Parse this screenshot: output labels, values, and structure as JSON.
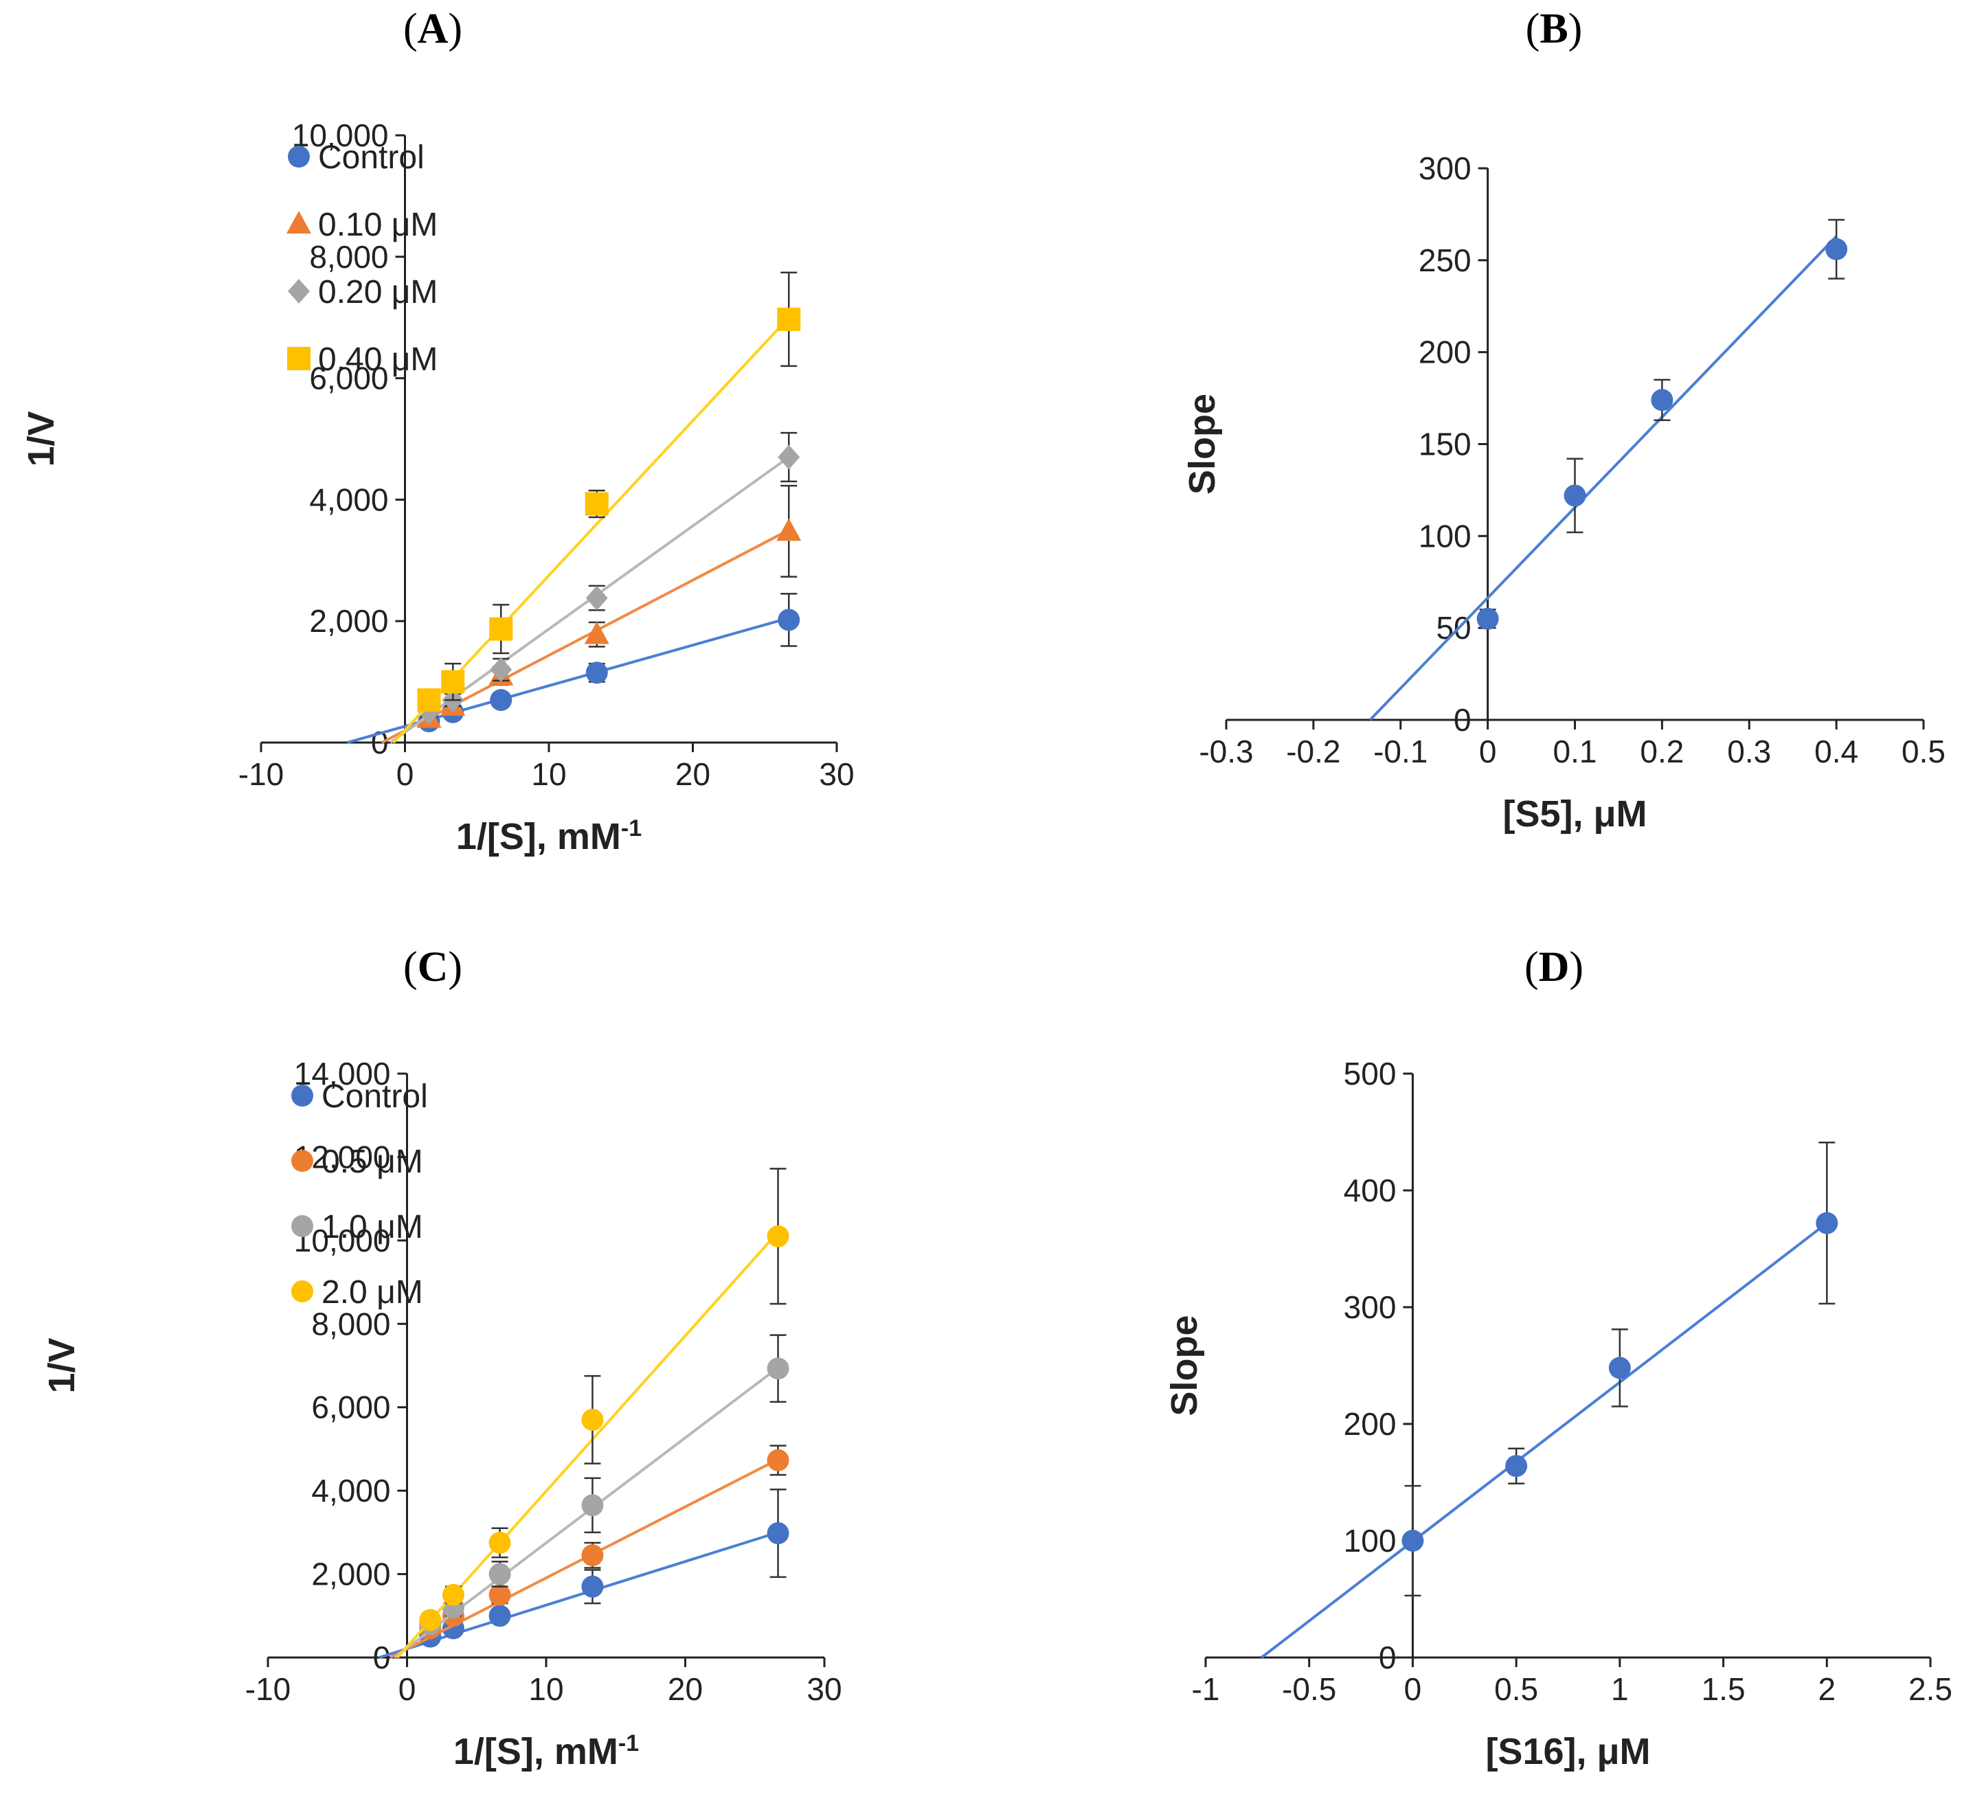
{
  "colors": {
    "blue": "#4472c4",
    "orange": "#ed7d31",
    "gray": "#a5a5a5",
    "yellow": "#ffc000",
    "fitblue": "#4a7fd4",
    "fitorange": "#f08a45",
    "fitgray": "#b8b8b8",
    "fityellow": "#ffd21f"
  },
  "chart_data": [
    {
      "id": "A",
      "panel_label": "A",
      "type": "scatter",
      "xlabel": "1/[S], mM",
      "xlabel_sup": "-1",
      "ylabel": "1/V",
      "xlim": [
        -10,
        30
      ],
      "ylim": [
        0,
        10000
      ],
      "xticks": [
        -10,
        0,
        10,
        20,
        30
      ],
      "yticks": [
        0,
        2000,
        4000,
        6000,
        8000,
        10000
      ],
      "xtick_labels": [
        "-10",
        "0",
        "10",
        "20",
        "30"
      ],
      "ytick_labels": [
        "0",
        "2,000",
        "4,000",
        "6,000",
        "8,000",
        "10,000"
      ],
      "legend_position": "top-left",
      "series": [
        {
          "name": "Control",
          "marker": "circle",
          "color": "blue",
          "x": [
            1.67,
            3.33,
            6.67,
            13.33,
            26.67
          ],
          "y": [
            350,
            500,
            700,
            1150,
            2020
          ],
          "err": [
            60,
            80,
            100,
            150,
            430
          ],
          "fit": {
            "x": [
              -4,
              26.67
            ],
            "y": [
              0,
              2050
            ]
          }
        },
        {
          "name": "0.10 μM",
          "marker": "triangle",
          "color": "orange",
          "x": [
            1.67,
            3.33,
            6.67,
            13.33,
            26.67
          ],
          "y": [
            400,
            600,
            1100,
            1780,
            3480
          ],
          "err": [
            60,
            90,
            150,
            200,
            750
          ],
          "fit": {
            "x": [
              -1.6,
              26.67
            ],
            "y": [
              0,
              3500
            ]
          }
        },
        {
          "name": "0.20 μM",
          "marker": "diamond",
          "color": "gray",
          "x": [
            1.67,
            3.33,
            6.67,
            13.33,
            26.67
          ],
          "y": [
            500,
            700,
            1200,
            2380,
            4700
          ],
          "err": [
            70,
            100,
            180,
            200,
            400
          ],
          "fit": {
            "x": [
              -1,
              26.67
            ],
            "y": [
              0,
              4700
            ]
          }
        },
        {
          "name": "0.40 μM",
          "marker": "square",
          "color": "yellow",
          "x": [
            1.67,
            3.33,
            6.67,
            13.33,
            26.67
          ],
          "y": [
            700,
            1000,
            1870,
            3930,
            6970
          ],
          "err": [
            100,
            300,
            400,
            220,
            770
          ],
          "fit": {
            "x": [
              -0.8,
              26.67
            ],
            "y": [
              0,
              7000
            ]
          }
        }
      ]
    },
    {
      "id": "B",
      "panel_label": "B",
      "type": "scatter",
      "xlabel": "[S5], μM",
      "ylabel": "Slope",
      "xlim": [
        -0.3,
        0.5
      ],
      "ylim": [
        0,
        300
      ],
      "xticks": [
        -0.3,
        -0.2,
        -0.1,
        0,
        0.1,
        0.2,
        0.3,
        0.4,
        0.5
      ],
      "yticks": [
        0,
        50,
        100,
        150,
        200,
        250,
        300
      ],
      "xtick_labels": [
        "-0.3",
        "-0.2",
        "-0.1",
        "0",
        "0.1",
        "0.2",
        "0.3",
        "0.4",
        "0.5"
      ],
      "ytick_labels": [
        "0",
        "50",
        "100",
        "150",
        "200",
        "250",
        "300"
      ],
      "series": [
        {
          "name": "Slope",
          "marker": "circle",
          "color": "blue",
          "x": [
            0,
            0.1,
            0.2,
            0.4
          ],
          "y": [
            55,
            122,
            174,
            256
          ],
          "err": [
            5,
            20,
            11,
            16
          ],
          "fit": {
            "x": [
              -0.135,
              0.4
            ],
            "y": [
              0,
              263
            ]
          }
        }
      ]
    },
    {
      "id": "C",
      "panel_label": "C",
      "type": "scatter",
      "xlabel": "1/[S], mM",
      "xlabel_sup": "-1",
      "ylabel": "1/V",
      "xlim": [
        -10,
        30
      ],
      "ylim": [
        0,
        14000
      ],
      "xticks": [
        -10,
        0,
        10,
        20,
        30
      ],
      "yticks": [
        0,
        2000,
        4000,
        6000,
        8000,
        10000,
        12000,
        14000
      ],
      "xtick_labels": [
        "-10",
        "0",
        "10",
        "20",
        "30"
      ],
      "ytick_labels": [
        "0",
        "2,000",
        "4,000",
        "6,000",
        "8,000",
        "10,000",
        "12,000",
        "14,000"
      ],
      "legend_position": "top-left",
      "series": [
        {
          "name": "Control",
          "marker": "circle",
          "color": "blue",
          "x": [
            1.67,
            3.33,
            6.67,
            13.33,
            26.67
          ],
          "y": [
            500,
            700,
            1000,
            1700,
            2980
          ],
          "err": [
            80,
            100,
            150,
            400,
            1050
          ],
          "fit": {
            "x": [
              -2,
              26.67
            ],
            "y": [
              0,
              3000
            ]
          }
        },
        {
          "name": "0.5 μM",
          "marker": "circle",
          "color": "orange",
          "x": [
            1.67,
            3.33,
            6.67,
            13.33,
            26.67
          ],
          "y": [
            700,
            1000,
            1500,
            2450,
            4730
          ],
          "err": [
            100,
            150,
            200,
            300,
            350
          ],
          "fit": {
            "x": [
              -1.2,
              26.67
            ],
            "y": [
              0,
              4750
            ]
          }
        },
        {
          "name": "1.0 μM",
          "marker": "circle",
          "color": "gray",
          "x": [
            1.67,
            3.33,
            6.67,
            13.33,
            26.67
          ],
          "y": [
            800,
            1200,
            2000,
            3650,
            6930
          ],
          "err": [
            100,
            200,
            300,
            650,
            800
          ],
          "fit": {
            "x": [
              -0.9,
              26.67
            ],
            "y": [
              0,
              6950
            ]
          }
        },
        {
          "name": "2.0 μM",
          "marker": "circle",
          "color": "yellow",
          "x": [
            1.67,
            3.33,
            6.67,
            13.33,
            26.67
          ],
          "y": [
            900,
            1500,
            2750,
            5700,
            10100
          ],
          "err": [
            150,
            200,
            350,
            1050,
            1620
          ],
          "fit": {
            "x": [
              -0.7,
              26.67
            ],
            "y": [
              0,
              10200
            ]
          }
        }
      ]
    },
    {
      "id": "D",
      "panel_label": "D",
      "type": "scatter",
      "xlabel": "[S16], μM",
      "ylabel": "Slope",
      "xlim": [
        -1,
        2.5
      ],
      "ylim": [
        0,
        500
      ],
      "xticks": [
        -1,
        -0.5,
        0,
        0.5,
        1,
        1.5,
        2,
        2.5
      ],
      "yticks": [
        0,
        100,
        200,
        300,
        400,
        500
      ],
      "xtick_labels": [
        "-1",
        "-0.5",
        "0",
        "0.5",
        "1",
        "1.5",
        "2",
        "2.5"
      ],
      "ytick_labels": [
        "0",
        "100",
        "200",
        "300",
        "400",
        "500"
      ],
      "series": [
        {
          "name": "Slope",
          "marker": "circle",
          "color": "blue",
          "x": [
            0,
            0.5,
            1,
            2
          ],
          "y": [
            100,
            164,
            248,
            372
          ],
          "err": [
            47,
            15,
            33,
            69
          ],
          "fit": {
            "x": [
              -0.73,
              2
            ],
            "y": [
              0,
              372
            ]
          }
        }
      ]
    }
  ]
}
